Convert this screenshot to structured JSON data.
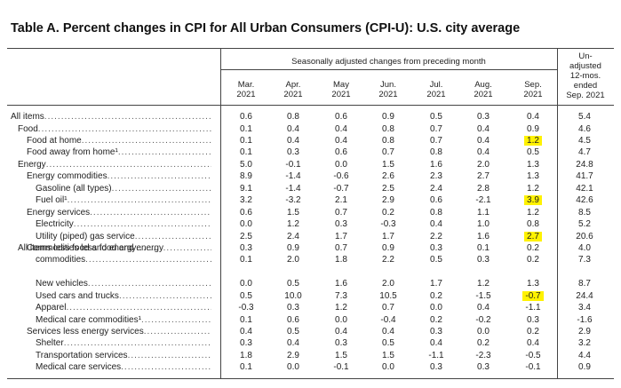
{
  "title": "Table A. Percent changes in CPI for All Urban Consumers (CPI-U): U.S. city average",
  "header": {
    "group": "Seasonally adjusted changes from preceding month",
    "months": [
      [
        "Mar.",
        "2021"
      ],
      [
        "Apr.",
        "2021"
      ],
      [
        "May",
        "2021"
      ],
      [
        "Jun.",
        "2021"
      ],
      [
        "Jul.",
        "2021"
      ],
      [
        "Aug.",
        "2021"
      ],
      [
        "Sep.",
        "2021"
      ]
    ],
    "last": [
      "Un-",
      "adjusted",
      "12-mos.",
      "ended",
      "Sep. 2021"
    ]
  },
  "rows": [
    {
      "label": "All items",
      "indent": 0,
      "values": [
        "0.6",
        "0.8",
        "0.6",
        "0.9",
        "0.5",
        "0.3",
        "0.4",
        "5.4"
      ]
    },
    {
      "label": "Food",
      "indent": 1,
      "values": [
        "0.1",
        "0.4",
        "0.4",
        "0.8",
        "0.7",
        "0.4",
        "0.9",
        "4.6"
      ]
    },
    {
      "label": "Food at home",
      "indent": 2,
      "values": [
        "0.1",
        "0.4",
        "0.4",
        "0.8",
        "0.7",
        "0.4",
        "1.2",
        "4.5"
      ],
      "hl": 6
    },
    {
      "label": "Food away from home¹",
      "indent": 2,
      "values": [
        "0.1",
        "0.3",
        "0.6",
        "0.7",
        "0.8",
        "0.4",
        "0.5",
        "4.7"
      ]
    },
    {
      "label": "Energy",
      "indent": 1,
      "values": [
        "5.0",
        "-0.1",
        "0.0",
        "1.5",
        "1.6",
        "2.0",
        "1.3",
        "24.8"
      ]
    },
    {
      "label": "Energy commodities",
      "indent": 2,
      "values": [
        "8.9",
        "-1.4",
        "-0.6",
        "2.6",
        "2.3",
        "2.7",
        "1.3",
        "41.7"
      ]
    },
    {
      "label": "Gasoline (all types)",
      "indent": 3,
      "values": [
        "9.1",
        "-1.4",
        "-0.7",
        "2.5",
        "2.4",
        "2.8",
        "1.2",
        "42.1"
      ]
    },
    {
      "label": "Fuel oil¹",
      "indent": 3,
      "values": [
        "3.2",
        "-3.2",
        "2.1",
        "2.9",
        "0.6",
        "-2.1",
        "3.9",
        "42.6"
      ],
      "hl": 6
    },
    {
      "label": "Energy services",
      "indent": 2,
      "values": [
        "0.6",
        "1.5",
        "0.7",
        "0.2",
        "0.8",
        "1.1",
        "1.2",
        "8.5"
      ]
    },
    {
      "label": "Electricity",
      "indent": 3,
      "values": [
        "0.0",
        "1.2",
        "0.3",
        "-0.3",
        "0.4",
        "1.0",
        "0.8",
        "5.2"
      ]
    },
    {
      "label": "Utility (piped) gas service",
      "indent": 3,
      "values": [
        "2.5",
        "2.4",
        "1.7",
        "1.7",
        "2.2",
        "1.6",
        "2.7",
        "20.6"
      ],
      "hl": 6
    },
    {
      "label": "All items less food and energy",
      "indent": 1,
      "values": [
        "0.3",
        "0.9",
        "0.7",
        "0.9",
        "0.3",
        "0.1",
        "0.2",
        "4.0"
      ]
    },
    {
      "label": "Commodities less food and energy",
      "label2": "commodities",
      "indent": 2,
      "values": [
        "0.1",
        "2.0",
        "1.8",
        "2.2",
        "0.5",
        "0.3",
        "0.2",
        "7.3"
      ]
    },
    {
      "label": "New vehicles",
      "indent": 3,
      "values": [
        "0.0",
        "0.5",
        "1.6",
        "2.0",
        "1.7",
        "1.2",
        "1.3",
        "8.7"
      ]
    },
    {
      "label": "Used cars and trucks",
      "indent": 3,
      "values": [
        "0.5",
        "10.0",
        "7.3",
        "10.5",
        "0.2",
        "-1.5",
        "-0.7",
        "24.4"
      ],
      "hl": 6
    },
    {
      "label": "Apparel",
      "indent": 3,
      "values": [
        "-0.3",
        "0.3",
        "1.2",
        "0.7",
        "0.0",
        "0.4",
        "-1.1",
        "3.4"
      ]
    },
    {
      "label": "Medical care commodities¹",
      "indent": 3,
      "values": [
        "0.1",
        "0.6",
        "0.0",
        "-0.4",
        "0.2",
        "-0.2",
        "0.3",
        "-1.6"
      ]
    },
    {
      "label": "Services less energy services",
      "indent": 2,
      "values": [
        "0.4",
        "0.5",
        "0.4",
        "0.4",
        "0.3",
        "0.0",
        "0.2",
        "2.9"
      ]
    },
    {
      "label": "Shelter",
      "indent": 3,
      "values": [
        "0.3",
        "0.4",
        "0.3",
        "0.5",
        "0.4",
        "0.2",
        "0.4",
        "3.2"
      ]
    },
    {
      "label": "Transportation services",
      "indent": 3,
      "values": [
        "1.8",
        "2.9",
        "1.5",
        "1.5",
        "-1.1",
        "-2.3",
        "-0.5",
        "4.4"
      ]
    },
    {
      "label": "Medical care services",
      "indent": 3,
      "values": [
        "0.1",
        "0.0",
        "-0.1",
        "0.0",
        "0.3",
        "0.3",
        "-0.1",
        "0.9"
      ]
    }
  ],
  "highlight_color": "#fff200"
}
